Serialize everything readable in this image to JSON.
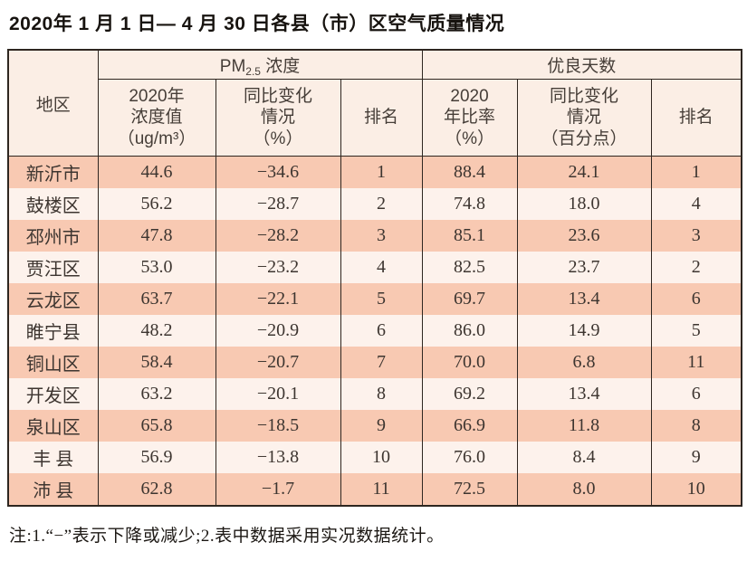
{
  "title": "2020年 1 月 1 日— 4 月 30 日各县（市）区空气质量情况",
  "colors": {
    "row_odd": "#f8c9b2",
    "row_even": "#fdf2ec",
    "header_bg": "#fbeee5",
    "border": "#2e2620"
  },
  "table": {
    "header": {
      "region": "地区",
      "pm25_group": {
        "prefix": "PM",
        "sub": "2.5",
        "suffix": " 浓度"
      },
      "good_days_group": "优良天数",
      "sub_headers": [
        {
          "lines": [
            "2020年",
            "浓度值",
            "（ug/m³）"
          ]
        },
        {
          "lines": [
            "同比变化",
            "情况",
            "（%）"
          ]
        },
        {
          "lines": [
            "排名"
          ]
        },
        {
          "lines": [
            "2020",
            "年比率",
            "（%）"
          ]
        },
        {
          "lines": [
            "同比变化",
            "情况",
            "（百分点）"
          ]
        },
        {
          "lines": [
            "排名"
          ]
        }
      ]
    },
    "rows": [
      [
        "新沂市",
        "44.6",
        "−34.6",
        "1",
        "88.4",
        "24.1",
        "1"
      ],
      [
        "鼓楼区",
        "56.2",
        "−28.7",
        "2",
        "74.8",
        "18.0",
        "4"
      ],
      [
        "邳州市",
        "47.8",
        "−28.2",
        "3",
        "85.1",
        "23.6",
        "3"
      ],
      [
        "贾汪区",
        "53.0",
        "−23.2",
        "4",
        "82.5",
        "23.7",
        "2"
      ],
      [
        "云龙区",
        "63.7",
        "−22.1",
        "5",
        "69.7",
        "13.4",
        "6"
      ],
      [
        "睢宁县",
        "48.2",
        "−20.9",
        "6",
        "86.0",
        "14.9",
        "5"
      ],
      [
        "铜山区",
        "58.4",
        "−20.7",
        "7",
        "70.0",
        "6.8",
        "11"
      ],
      [
        "开发区",
        "63.2",
        "−20.1",
        "8",
        "69.2",
        "13.4",
        "6"
      ],
      [
        "泉山区",
        "65.8",
        "−18.5",
        "9",
        "66.9",
        "11.8",
        "8"
      ],
      [
        "丰 县",
        "56.9",
        "−13.8",
        "10",
        "76.0",
        "8.4",
        "9"
      ],
      [
        "沛 县",
        "62.8",
        "−1.7",
        "11",
        "72.5",
        "8.0",
        "10"
      ]
    ]
  },
  "footnote": "注:1.“−”表示下降或减少;2.表中数据采用实况数据统计。",
  "chart_data": {
    "type": "table",
    "title": "2020年 1 月 1 日— 4 月 30 日各县（市）区空气质量情况",
    "columns": [
      "地区",
      "PM2.5浓度 2020年浓度值（ug/m³）",
      "PM2.5浓度 同比变化情况（%）",
      "PM2.5浓度 排名",
      "优良天数 2020年比率（%）",
      "优良天数 同比变化情况（百分点）",
      "优良天数 排名"
    ],
    "rows": [
      [
        "新沂市",
        44.6,
        -34.6,
        1,
        88.4,
        24.1,
        1
      ],
      [
        "鼓楼区",
        56.2,
        -28.7,
        2,
        74.8,
        18.0,
        4
      ],
      [
        "邳州市",
        47.8,
        -28.2,
        3,
        85.1,
        23.6,
        3
      ],
      [
        "贾汪区",
        53.0,
        -23.2,
        4,
        82.5,
        23.7,
        2
      ],
      [
        "云龙区",
        63.7,
        -22.1,
        5,
        69.7,
        13.4,
        6
      ],
      [
        "睢宁县",
        48.2,
        -20.9,
        6,
        86.0,
        14.9,
        5
      ],
      [
        "铜山区",
        58.4,
        -20.7,
        7,
        70.0,
        6.8,
        11
      ],
      [
        "开发区",
        63.2,
        -20.1,
        8,
        69.2,
        13.4,
        6
      ],
      [
        "泉山区",
        65.8,
        -18.5,
        9,
        66.9,
        11.8,
        8
      ],
      [
        "丰县",
        56.9,
        -13.8,
        10,
        76.0,
        8.4,
        9
      ],
      [
        "沛县",
        62.8,
        -1.7,
        11,
        72.5,
        8.0,
        10
      ]
    ]
  }
}
